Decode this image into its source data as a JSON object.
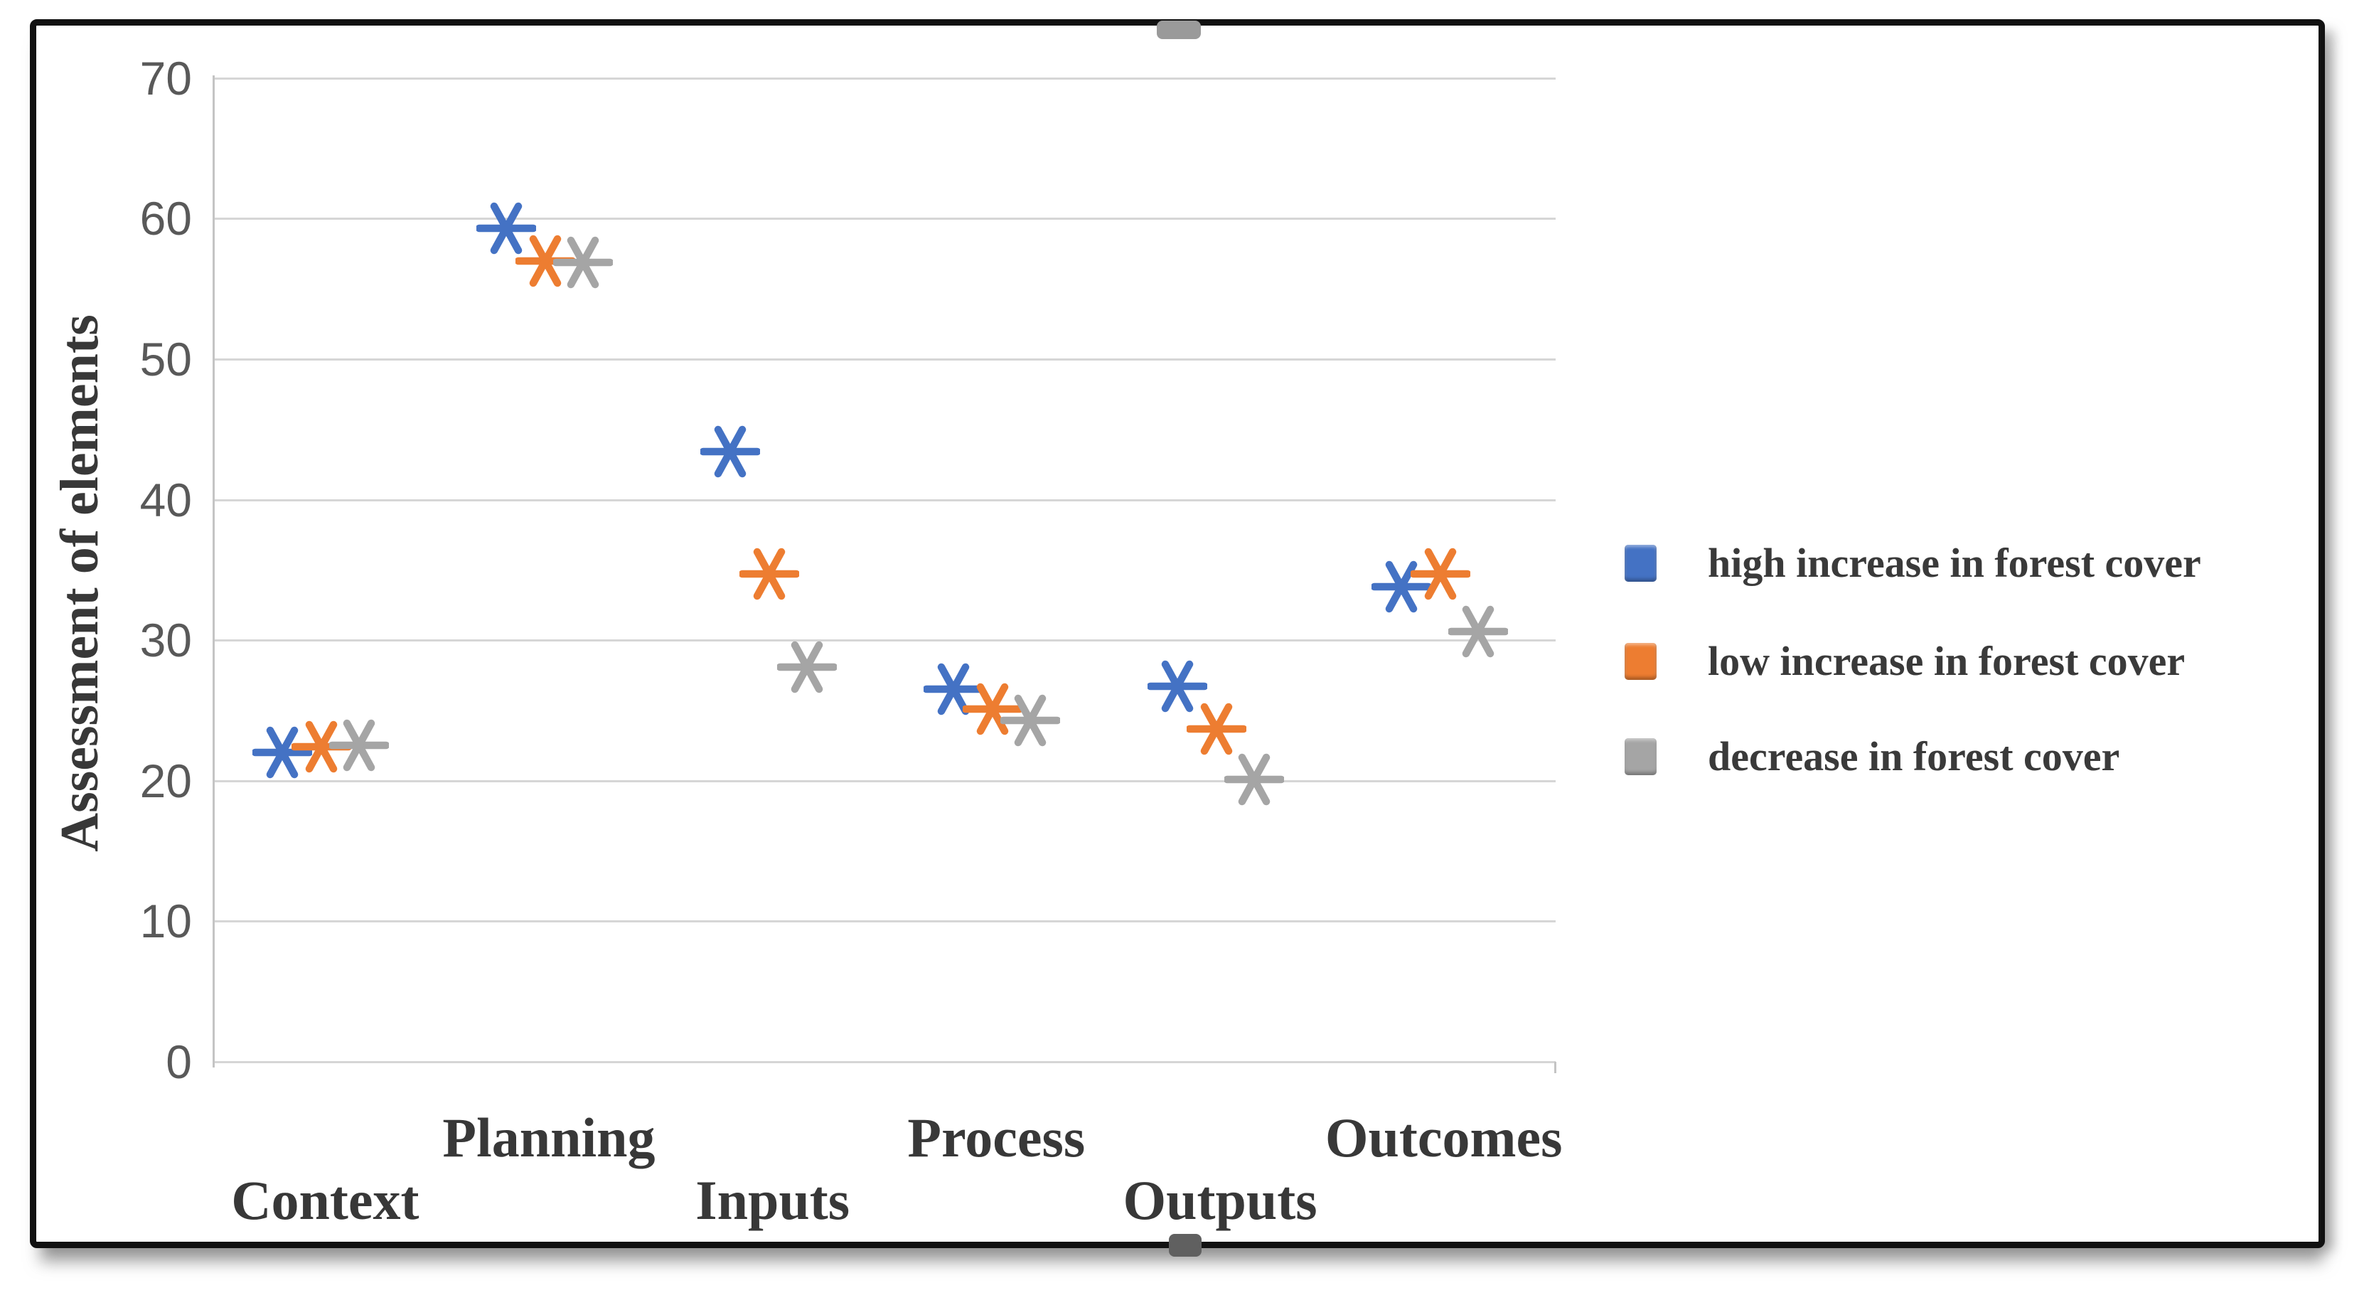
{
  "figure": {
    "frame_color": "#111111",
    "background_color": "#ffffff",
    "handles": {
      "top_handle_icon": "drag-handle",
      "bottom_handle_icon": "drag-handle"
    }
  },
  "chart_data": {
    "type": "scatter",
    "title": "",
    "xlabel": "",
    "ylabel": "Assessment of elements",
    "ylim": [
      0,
      70
    ],
    "yticks": [
      0,
      10,
      20,
      30,
      40,
      50,
      60,
      70
    ],
    "grid": true,
    "marker_style": "asterisk",
    "legend_position": "right",
    "categories": [
      "Context",
      "Planning",
      "Inputs",
      "Process",
      "Outputs",
      "Outcomes"
    ],
    "series": [
      {
        "name": "high increase in forest cover",
        "color": "#4472C4",
        "values": [
          22.0,
          59.3,
          43.4,
          26.5,
          26.7,
          33.8
        ]
      },
      {
        "name": "low increase in forest cover",
        "color": "#ED7D31",
        "values": [
          22.4,
          57.0,
          34.7,
          25.1,
          23.7,
          34.7
        ]
      },
      {
        "name": "decrease in forest cover",
        "color": "#A5A5A5",
        "values": [
          22.5,
          56.9,
          28.1,
          24.3,
          20.1,
          30.6
        ]
      }
    ]
  }
}
